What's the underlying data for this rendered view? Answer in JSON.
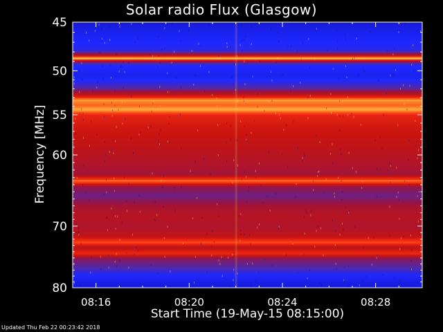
{
  "chart_data": {
    "type": "heatmap",
    "title": "Solar radio Flux (Glasgow)",
    "xlabel": "Start Time (19-May-15 08:15:00)",
    "ylabel": "Frequency [MHz]",
    "x_unit": "time",
    "x_range": [
      "08:15:00",
      "08:30:00"
    ],
    "x_ticks": [
      "08:16",
      "08:20",
      "08:24",
      "08:28"
    ],
    "x_tick_minutes": [
      16,
      20,
      24,
      28
    ],
    "y_range": [
      45,
      80
    ],
    "y_ticks": [
      45,
      50,
      55,
      60,
      70,
      80
    ],
    "y_tick_labels": [
      "45",
      "50",
      "55",
      "60",
      "70",
      "80"
    ],
    "y_scale": "log",
    "colormap": "blue-red-yellow",
    "colors": {
      "low": "#0a10c8",
      "mid": "#b01010",
      "high": "#ffff80",
      "background": "#000000"
    }
  },
  "footer": {
    "updated_text": "Updated Thu Feb 22 00:23:42 2018"
  }
}
